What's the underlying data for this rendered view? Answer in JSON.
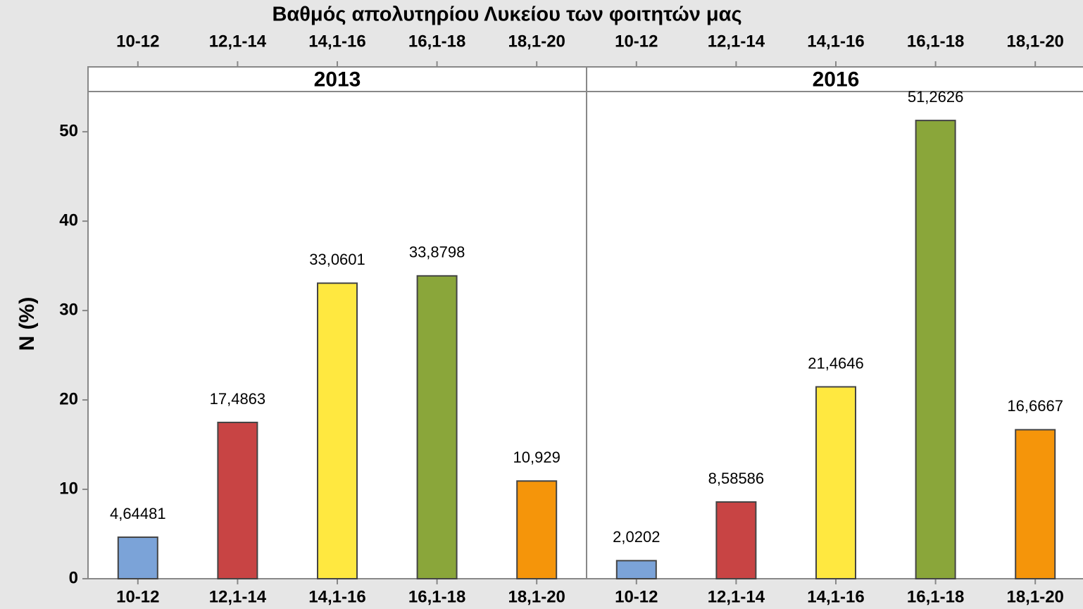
{
  "title": "Βαθμός απολυτηρίου Λυκείου των φοιτητών μας",
  "ylabel": "N (%)",
  "ylim": [
    0,
    54.5
  ],
  "yticks": [
    0,
    10,
    20,
    30,
    40,
    50
  ],
  "chart_data": [
    {
      "type": "bar",
      "title": "2013",
      "categories": [
        "10-12",
        "12,1-14",
        "14,1-16",
        "16,1-18",
        "18,1-20"
      ],
      "values": [
        4.64481,
        17.4863,
        33.0601,
        33.8798,
        10.929
      ],
      "value_labels": [
        "4,64481",
        "17,4863",
        "33,0601",
        "33,8798",
        "10,929"
      ],
      "colors": [
        "#7ba3d8",
        "#c84444",
        "#ffe840",
        "#8aa63a",
        "#f5950a"
      ]
    },
    {
      "type": "bar",
      "title": "2016",
      "categories": [
        "10-12",
        "12,1-14",
        "14,1-16",
        "16,1-18",
        "18,1-20"
      ],
      "values": [
        2.0202,
        8.58586,
        21.4646,
        51.2626,
        16.6667
      ],
      "value_labels": [
        "2,0202",
        "8,58586",
        "21,4646",
        "51,2626",
        "16,6667"
      ],
      "colors": [
        "#7ba3d8",
        "#c84444",
        "#ffe840",
        "#8aa63a",
        "#f5950a"
      ]
    }
  ]
}
